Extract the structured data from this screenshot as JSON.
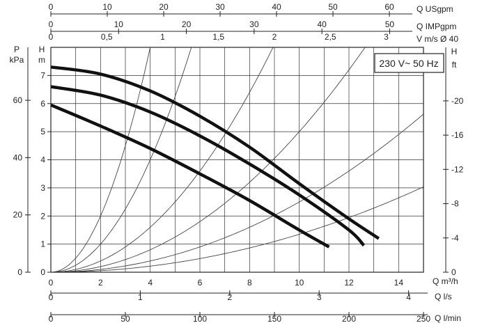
{
  "chart_data": {
    "type": "line",
    "badge": "230 V~ 50 Hz",
    "x": {
      "label": "Q m³/h",
      "min": 0,
      "max": 15,
      "ticks": [
        0,
        2,
        4,
        6,
        8,
        10,
        12,
        14
      ]
    },
    "y": {
      "label_top": "H",
      "label_unit": "m",
      "min": 0,
      "max": 8,
      "ticks": [
        0,
        1,
        2,
        3,
        4,
        5,
        6,
        7
      ]
    },
    "y_kpa": {
      "label_top": "P",
      "label_unit": "kPa",
      "ticks": [
        0,
        20,
        40,
        60
      ]
    },
    "y_ft": {
      "label_top": "H",
      "label_unit": "ft",
      "ticks": [
        0,
        4,
        8,
        12,
        16,
        20
      ]
    },
    "top_axes": [
      {
        "label": "Q USgpm",
        "ticks": [
          0,
          10,
          20,
          30,
          40,
          50,
          60
        ],
        "m3h_per_unit": 0.22712
      },
      {
        "label": "Q IMPgpm",
        "ticks": [
          0,
          10,
          20,
          30,
          40,
          50
        ],
        "m3h_per_unit": 0.27277
      },
      {
        "label": "V m/s Ø 40",
        "tick_labels": [
          "0",
          "0,5",
          "1",
          "1,5",
          "2",
          "2,5",
          "3"
        ],
        "ticks": [
          0,
          0.5,
          1,
          1.5,
          2,
          2.5,
          3
        ],
        "m3h_per_unit": 4.5
      }
    ],
    "bottom_axes": [
      {
        "label": "Q l/s",
        "ticks": [
          0,
          1,
          2,
          3,
          4
        ],
        "m3h_per_unit": 3.6
      },
      {
        "label": "Q l/min",
        "ticks": [
          0,
          50,
          100,
          150,
          200,
          250
        ],
        "m3h_per_unit": 0.06
      }
    ],
    "grid": true,
    "system_curves_k": [
      0.5,
      0.25,
      0.1,
      0.05,
      0.025,
      0.0135
    ],
    "series": [
      {
        "x": [
          0,
          2,
          4,
          6,
          8,
          10,
          11.2
        ],
        "y": [
          5.95,
          5.2,
          4.4,
          3.5,
          2.55,
          1.5,
          0.9
        ]
      },
      {
        "x": [
          0,
          2,
          4,
          6,
          8,
          10,
          12,
          12.6
        ],
        "y": [
          6.6,
          6.3,
          5.7,
          4.85,
          3.85,
          2.75,
          1.5,
          0.95
        ]
      },
      {
        "x": [
          0,
          2,
          4,
          6,
          8,
          10,
          12,
          13.2
        ],
        "y": [
          7.3,
          7.05,
          6.45,
          5.55,
          4.45,
          3.15,
          1.9,
          1.2
        ]
      }
    ]
  }
}
